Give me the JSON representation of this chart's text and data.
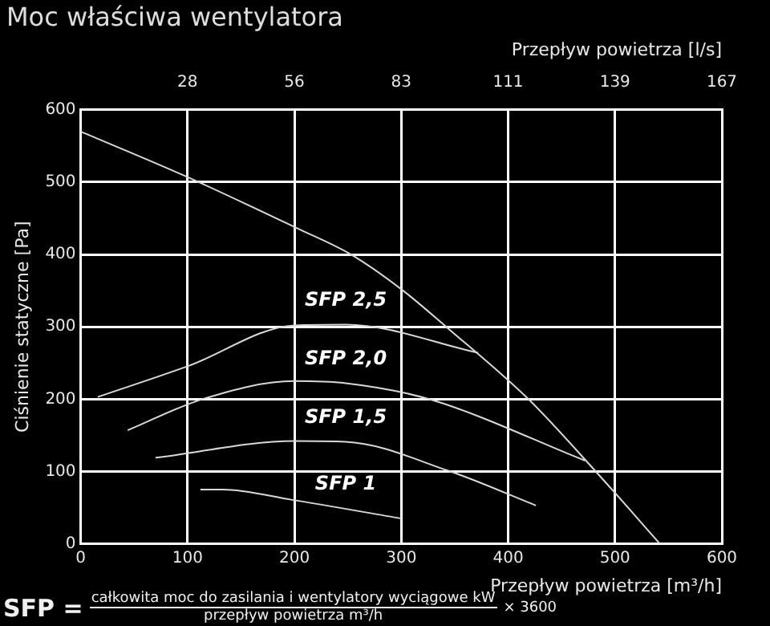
{
  "chart_data": {
    "type": "line",
    "title": "Moc właściwa wentylatora",
    "xlabel": "Przepływ powietrza [m³/h]",
    "x2label": "Przepływ powietrza [l/s]",
    "ylabel": "Ciśnienie statyczne [Pa]",
    "xlim": [
      0,
      600
    ],
    "xticks": [
      0,
      100,
      200,
      300,
      400,
      500,
      600
    ],
    "x2lim": [
      0,
      166.67
    ],
    "x2ticks": [
      {
        "value": 27.78,
        "label": "28"
      },
      {
        "value": 55.56,
        "label": "56"
      },
      {
        "value": 83.33,
        "label": "83"
      },
      {
        "value": 111.11,
        "label": "111"
      },
      {
        "value": 138.89,
        "label": "139"
      },
      {
        "value": 166.67,
        "label": "167"
      }
    ],
    "ylim": [
      0,
      600
    ],
    "yticks": [
      0,
      100,
      200,
      300,
      400,
      500,
      600
    ],
    "grid": true,
    "legend": false,
    "marker": "none",
    "line_style": "solid",
    "series": [
      {
        "color": "#d8d8d8",
        "x": [
          0,
          100,
          200,
          253,
          300,
          342,
          419,
          482,
          542
        ],
        "values": [
          570,
          507,
          438,
          400,
          352,
          300,
          200,
          100,
          0
        ]
      },
      {
        "name": "SFP 2,5",
        "color": "#d8d8d8",
        "x": [
          16,
          101,
          200,
          248,
          372
        ],
        "values": [
          203,
          246,
          302,
          303,
          264
        ]
      },
      {
        "name": "SFP 2,0",
        "color": "#d8d8d8",
        "x": [
          44,
          114,
          200,
          248,
          326,
          472
        ],
        "values": [
          157,
          200,
          225,
          222,
          200,
          115
        ]
      },
      {
        "name": "SFP 1,5",
        "color": "#d8d8d8",
        "x": [
          70,
          200,
          248,
          344,
          426
        ],
        "values": [
          119,
          142,
          141,
          101,
          53
        ]
      },
      {
        "name": "SFP 1",
        "color": "#d8d8d8",
        "x": [
          112,
          133,
          197,
          300
        ],
        "values": [
          75,
          75,
          61,
          35
        ]
      }
    ],
    "annotations": [
      "SFP =",
      "całkowita moc do zasilania i wentylatory wyciągowe kW",
      "przepływ powietrza m³/h",
      "× 3600"
    ]
  }
}
